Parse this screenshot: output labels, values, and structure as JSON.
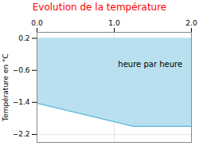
{
  "chart_data": {
    "type": "area",
    "title": "Evolution de la température",
    "ylabel": "Température en °C",
    "x": [
      0,
      1.25,
      2.0
    ],
    "series": [
      {
        "type": "area",
        "color": "#b8e0ee",
        "values": [
          -1.42,
          -2.0,
          -2.0
        ],
        "y_top": 0.2
      },
      {
        "type": "line",
        "color": "#5ab8d8",
        "values": [
          -1.42,
          -2.0,
          -2.0
        ]
      }
    ],
    "xlim": [
      0,
      2
    ],
    "xticks": [
      0,
      1,
      2
    ],
    "ylim": [
      -2.4,
      0.35
    ],
    "yticks": [
      0.2,
      -0.6,
      -1.4,
      -2.2
    ],
    "grid": true,
    "annotations": [
      {
        "text": "heure par heure",
        "x": 1.05,
        "y": -0.45
      }
    ]
  }
}
